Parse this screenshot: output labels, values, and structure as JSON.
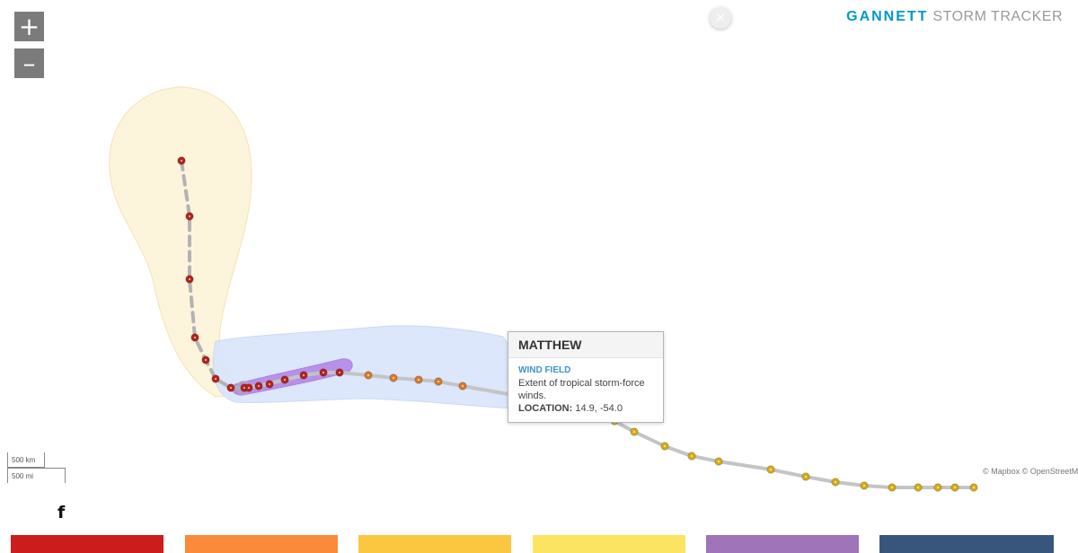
{
  "map": {
    "zoom_in": "+",
    "zoom_out": "–",
    "close": "×",
    "scale_km": "500 km",
    "scale_mi": "500 mi",
    "attribution": "© Mapbox © OpenStreetMap"
  },
  "brand": {
    "part1": "GANNETT",
    "part2": "STORM TRACKER"
  },
  "popup": {
    "title": "MATTHEW",
    "label": "WIND FIELD",
    "description": "Extent of tropical storm-force winds.",
    "location_label": "LOCATION:",
    "location_value": "14.9, -54.0"
  },
  "share": {
    "facebook_icon": "f"
  },
  "legend_colors": [
    "#cc1c1c",
    "#fb8a3b",
    "#fbc640",
    "#fce463",
    "#9f74b8",
    "#38567c"
  ],
  "track_colors": {
    "hurricane": "#b5231c",
    "tropical_storm": "#d97a2b",
    "depression": "#d6ac17"
  },
  "wind_field_colors": {
    "forecast_cone": "#fdf4dc",
    "tropical_storm_winds": "#dbe6fb",
    "hurricane_winds": "#b388e8"
  }
}
